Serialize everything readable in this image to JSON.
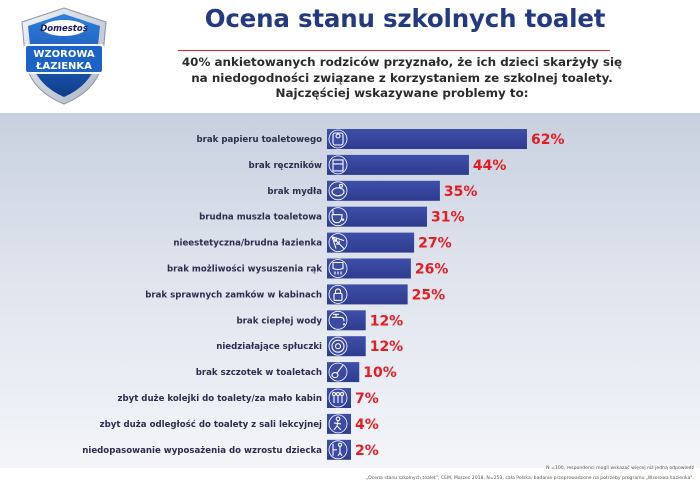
{
  "logo": {
    "brand": "Domestos",
    "program_line1": "WZOROWA",
    "program_line2": "ŁAZIENKA",
    "colors": {
      "shield": "#1b63c5",
      "shield_dark": "#0e3d8c",
      "badge": "#1a1a64",
      "text": "#ffffff"
    }
  },
  "header": {
    "title": "Ocena stanu szkolnych toalet",
    "subtitle_lines": [
      "40% ankietowanych rodziców przyznało, że ich dzieci skarżyły się",
      "na niedogodności związane z korzystaniem ze szkolnej toalety.",
      "Najczęściej wskazywane problemy to:"
    ]
  },
  "chart_data": {
    "type": "bar",
    "orientation": "horizontal",
    "categories": [
      "brak papieru toaletowego",
      "brak ręczników",
      "brak mydła",
      "brudna muszla toaletowa",
      "nieestetyczna/brudna łazienka",
      "brak możliwości wysuszenia rąk",
      "brak sprawnych zamków w kabinach",
      "brak ciepłej wody",
      "niedziałające spłuczki",
      "brak szczotek w toaletach",
      "zbyt duże kolejki do toalety/za mało kabin",
      "zbyt duża odległość do toalety z sali lekcyjnej",
      "niedopasowanie wyposażenia do wzrostu dziecka"
    ],
    "values": [
      62,
      44,
      35,
      31,
      27,
      26,
      25,
      12,
      12,
      10,
      7,
      4,
      2
    ],
    "value_labels": [
      "62%",
      "44%",
      "35%",
      "31%",
      "27%",
      "26%",
      "25%",
      "12%",
      "12%",
      "10%",
      "7%",
      "4%",
      "2%"
    ],
    "icons": [
      "toilet-paper-icon",
      "towel-icon",
      "soap-icon",
      "dirty-toilet-icon",
      "cobweb-icon",
      "hand-dryer-icon",
      "lock-icon",
      "faucet-icon",
      "flush-icon",
      "toilet-brush-icon",
      "queue-icon",
      "walking-person-icon",
      "child-icon"
    ],
    "xlim": [
      0,
      62
    ],
    "grid": false,
    "bar_color": "#2e3b8f",
    "label_color": "#e41d23"
  },
  "footnotes": {
    "line1": "N =100, respondenci mogli wskazać więcej niż jedną odpowiedź",
    "line2": "„Ocena stanu szkolnych toalet\", CEM, Marzec 2018, N=253, cała Polska, badanie przeprowadzone na potrzeby programu „Wzorowa Łazienka\"."
  }
}
